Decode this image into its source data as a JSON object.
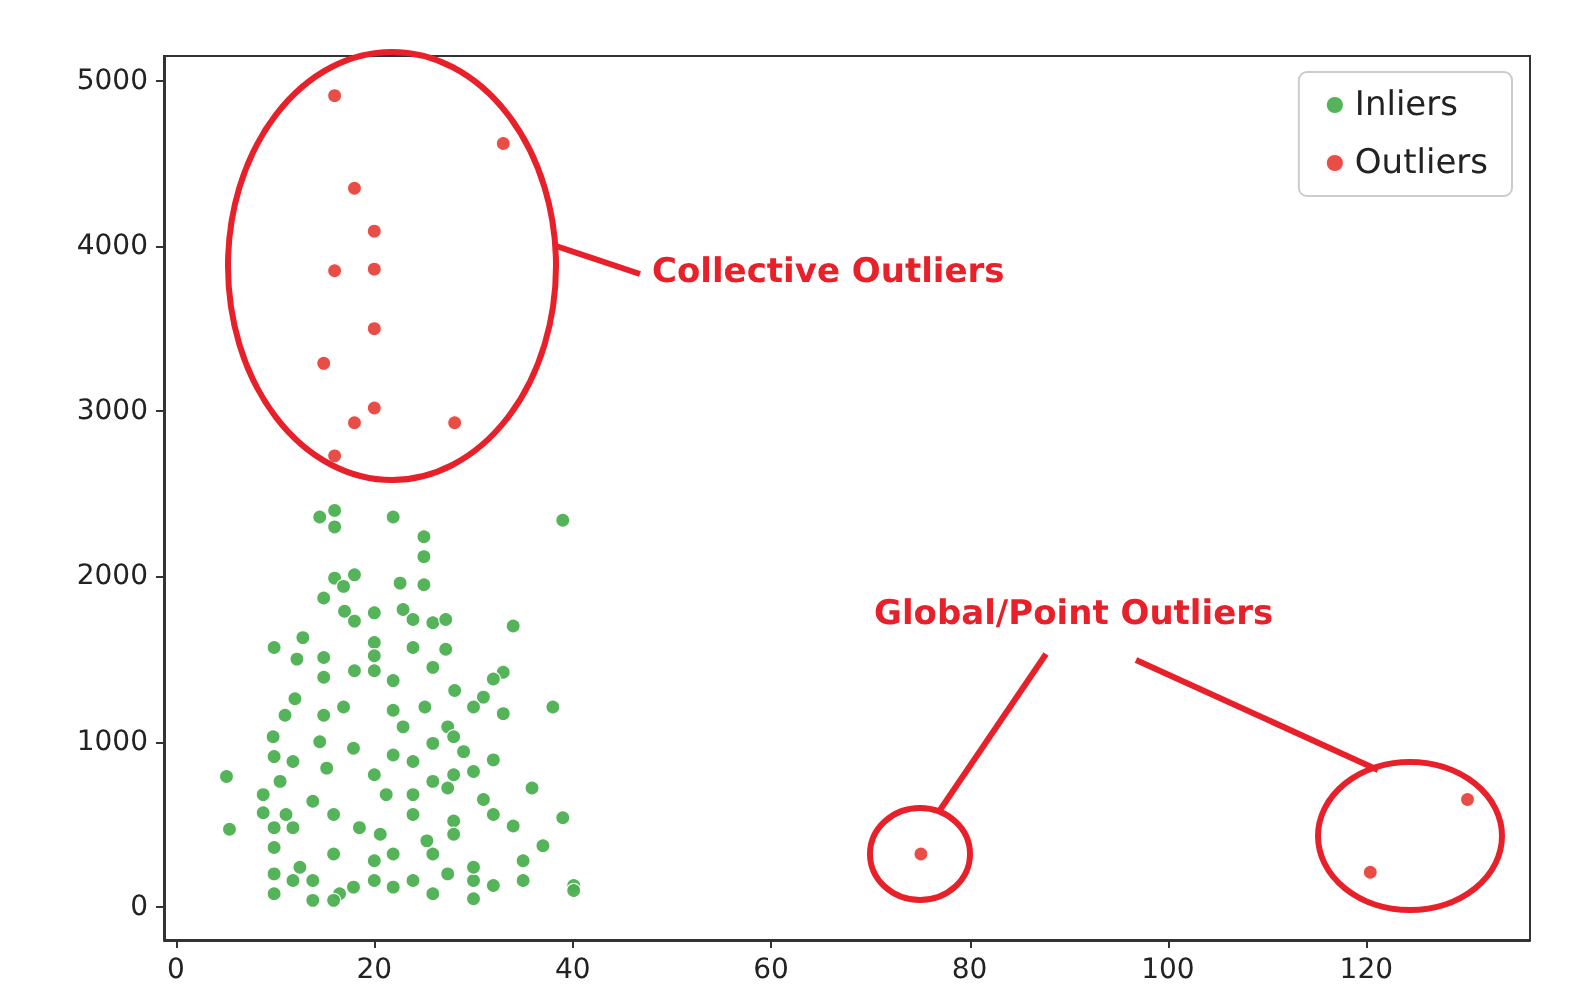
{
  "chart_data": {
    "type": "scatter",
    "xlim": [
      -1.2,
      136.5
    ],
    "xticks": [
      0,
      20,
      40,
      60,
      80,
      100,
      120
    ],
    "ylim": [
      -200,
      5150
    ],
    "yticks": [
      0,
      1000,
      2000,
      3000,
      4000,
      5000
    ],
    "grid": false,
    "legend": "top right",
    "marker": "circle",
    "annotations": [
      "Collective Outliers",
      "Global/Point Outliers"
    ],
    "series": [
      {
        "name": "Inliers",
        "color": "#4caf50",
        "x": [
          14.5,
          16.0,
          16.0,
          21.9,
          39.0,
          25.0,
          25.0,
          25.0,
          22.6,
          18.0,
          16.0,
          14.9,
          16.9,
          9.9,
          12.8,
          12.2,
          14.9,
          17.0,
          18.0,
          20.0,
          20.0,
          22.9,
          23.9,
          25.9,
          27.2,
          34.0,
          33.0,
          32.0,
          38.0,
          31.0,
          30.0,
          33.0,
          28.1,
          27.2,
          25.9,
          23.9,
          21.9,
          20.0,
          20.0,
          18.0,
          14.9,
          12.0,
          11.0,
          14.9,
          16.9,
          21.9,
          22.9,
          25.1,
          27.4,
          5.1,
          5.4,
          9.8,
          9.9,
          8.8,
          8.8,
          9.9,
          13.8,
          9.9,
          9.9,
          11.8,
          13.8,
          15.9,
          17.9,
          20.0,
          21.9,
          21.9,
          23.9,
          25.9,
          25.9,
          28.0,
          30.0,
          30.0,
          32.0,
          35.0,
          35.0,
          40.1,
          40.1,
          39.0,
          37.0,
          35.9,
          34.0,
          32.0,
          31.0,
          32.0,
          30.0,
          29.0,
          28.0,
          27.4,
          28.0,
          30.0,
          27.4,
          23.9,
          20.0,
          17.9,
          15.2,
          11.8,
          10.5,
          11.1,
          12.5,
          15.9,
          18.5,
          21.2,
          23.9,
          25.3,
          20.6,
          14.5,
          13.8,
          16.5,
          21.9,
          25.9,
          23.9,
          9.9,
          11.8,
          20.0,
          15.9,
          28.0,
          25.9
        ],
        "values": [
          2360,
          2400,
          2300,
          2360,
          2340,
          2240,
          2120,
          1950,
          1960,
          2010,
          1990,
          1870,
          1940,
          1570,
          1630,
          1500,
          1510,
          1790,
          1730,
          1780,
          1600,
          1800,
          1740,
          1720,
          1740,
          1700,
          1420,
          1380,
          1210,
          1270,
          1210,
          1170,
          1310,
          1560,
          1450,
          1570,
          1370,
          1520,
          1430,
          1430,
          1390,
          1260,
          1160,
          1160,
          1210,
          1190,
          1090,
          1210,
          1090,
          790,
          470,
          1030,
          910,
          680,
          570,
          80,
          40,
          360,
          200,
          480,
          640,
          320,
          120,
          160,
          320,
          120,
          160,
          80,
          320,
          520,
          50,
          160,
          130,
          280,
          160,
          130,
          100,
          540,
          370,
          720,
          490,
          560,
          650,
          890,
          820,
          940,
          1030,
          720,
          440,
          240,
          200,
          880,
          800,
          960,
          840,
          880,
          760,
          560,
          240,
          560,
          480,
          680,
          560,
          400,
          440,
          1000,
          160,
          80,
          920,
          760,
          680,
          480,
          160,
          280,
          40,
          800,
          990
        ]
      },
      {
        "name": "Outliers",
        "color": "#e8453c",
        "x": [
          16.0,
          33.0,
          18.0,
          20.0,
          16.0,
          20.0,
          20.0,
          14.9,
          20.0,
          18.0,
          28.1,
          16.0,
          75.1,
          120.4,
          130.2
        ],
        "values": [
          4910,
          4620,
          4350,
          4090,
          3850,
          3860,
          3500,
          3290,
          3020,
          2930,
          2930,
          2730,
          320,
          210,
          650
        ]
      }
    ]
  }
}
